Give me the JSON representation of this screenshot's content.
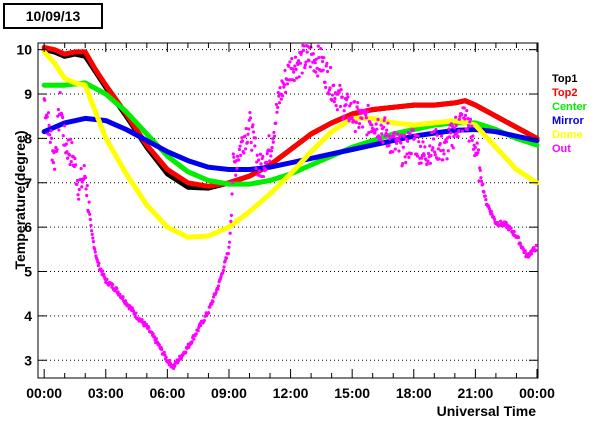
{
  "date_label": "10/09/13",
  "chart_data": {
    "type": "scatter",
    "title": "",
    "xlabel": "Universal Time",
    "ylabel": "Temperature(degree)",
    "x_range_hours": [
      0,
      24
    ],
    "xlim": [
      -0.3,
      24.05
    ],
    "ylim": [
      2.6,
      10.15
    ],
    "x_ticks": [
      {
        "h": 0,
        "label": "00:00"
      },
      {
        "h": 3,
        "label": "03:00"
      },
      {
        "h": 6,
        "label": "06:00"
      },
      {
        "h": 9,
        "label": "09:00"
      },
      {
        "h": 12,
        "label": "12:00"
      },
      {
        "h": 15,
        "label": "15:00"
      },
      {
        "h": 18,
        "label": "18:00"
      },
      {
        "h": 21,
        "label": "21:00"
      },
      {
        "h": 24,
        "label": "00:00"
      }
    ],
    "y_ticks": [
      3,
      4,
      5,
      6,
      7,
      8,
      9,
      10
    ],
    "grid": "horizontal dotted",
    "legend_position": "right",
    "series": [
      {
        "name": "Top1",
        "color": "#000000",
        "points": [
          [
            0,
            10.0
          ],
          [
            0.5,
            9.95
          ],
          [
            1,
            9.85
          ],
          [
            1.5,
            9.9
          ],
          [
            2,
            9.85
          ],
          [
            2.5,
            9.5
          ],
          [
            3,
            9.15
          ],
          [
            4,
            8.5
          ],
          [
            5,
            7.8
          ],
          [
            6,
            7.2
          ],
          [
            7,
            6.9
          ],
          [
            8,
            6.88
          ],
          [
            9,
            7.0
          ],
          [
            10,
            7.15
          ],
          [
            11,
            7.4
          ],
          [
            12,
            7.75
          ],
          [
            13,
            8.1
          ],
          [
            14,
            8.35
          ],
          [
            15,
            8.55
          ],
          [
            16,
            8.65
          ],
          [
            17,
            8.7
          ],
          [
            18,
            8.75
          ],
          [
            19,
            8.75
          ],
          [
            20,
            8.8
          ],
          [
            20.5,
            8.85
          ],
          [
            21,
            8.75
          ],
          [
            22,
            8.5
          ],
          [
            23,
            8.25
          ],
          [
            24,
            8.0
          ]
        ]
      },
      {
        "name": "Top2",
        "color": "#ff0000",
        "points": [
          [
            0,
            10.05
          ],
          [
            0.5,
            10.0
          ],
          [
            1,
            9.9
          ],
          [
            1.5,
            9.95
          ],
          [
            2,
            9.95
          ],
          [
            2.5,
            9.55
          ],
          [
            3,
            9.2
          ],
          [
            4,
            8.55
          ],
          [
            5,
            7.85
          ],
          [
            6,
            7.3
          ],
          [
            7,
            7.0
          ],
          [
            8,
            6.92
          ],
          [
            9,
            7.0
          ],
          [
            10,
            7.15
          ],
          [
            11,
            7.4
          ],
          [
            12,
            7.75
          ],
          [
            13,
            8.1
          ],
          [
            14,
            8.35
          ],
          [
            15,
            8.55
          ],
          [
            16,
            8.65
          ],
          [
            17,
            8.7
          ],
          [
            18,
            8.75
          ],
          [
            19,
            8.75
          ],
          [
            20,
            8.8
          ],
          [
            20.5,
            8.85
          ],
          [
            21,
            8.75
          ],
          [
            22,
            8.5
          ],
          [
            23,
            8.25
          ],
          [
            24,
            8.0
          ]
        ]
      },
      {
        "name": "Center",
        "color": "#00ee00",
        "points": [
          [
            0,
            9.2
          ],
          [
            1,
            9.2
          ],
          [
            2,
            9.25
          ],
          [
            3,
            9.0
          ],
          [
            4,
            8.6
          ],
          [
            5,
            8.1
          ],
          [
            6,
            7.6
          ],
          [
            7,
            7.25
          ],
          [
            8,
            7.05
          ],
          [
            9,
            6.97
          ],
          [
            10,
            6.97
          ],
          [
            11,
            7.05
          ],
          [
            12,
            7.2
          ],
          [
            13,
            7.4
          ],
          [
            14,
            7.6
          ],
          [
            15,
            7.8
          ],
          [
            16,
            7.95
          ],
          [
            17,
            8.1
          ],
          [
            18,
            8.2
          ],
          [
            19,
            8.3
          ],
          [
            20,
            8.35
          ],
          [
            21,
            8.35
          ],
          [
            22,
            8.2
          ],
          [
            23,
            8.0
          ],
          [
            24,
            7.85
          ]
        ]
      },
      {
        "name": "Mirror",
        "color": "#0000ee",
        "points": [
          [
            0,
            8.15
          ],
          [
            1,
            8.35
          ],
          [
            2,
            8.45
          ],
          [
            3,
            8.4
          ],
          [
            4,
            8.2
          ],
          [
            5,
            7.95
          ],
          [
            6,
            7.7
          ],
          [
            7,
            7.5
          ],
          [
            8,
            7.35
          ],
          [
            9,
            7.3
          ],
          [
            10,
            7.3
          ],
          [
            11,
            7.35
          ],
          [
            12,
            7.45
          ],
          [
            13,
            7.55
          ],
          [
            14,
            7.65
          ],
          [
            15,
            7.75
          ],
          [
            16,
            7.85
          ],
          [
            17,
            7.95
          ],
          [
            18,
            8.05
          ],
          [
            19,
            8.12
          ],
          [
            20,
            8.18
          ],
          [
            21,
            8.2
          ],
          [
            22,
            8.15
          ],
          [
            23,
            8.05
          ],
          [
            24,
            7.95
          ]
        ]
      },
      {
        "name": "Dome",
        "color": "#ffff00",
        "points": [
          [
            0,
            9.95
          ],
          [
            0.5,
            9.7
          ],
          [
            1,
            9.35
          ],
          [
            1.5,
            9.25
          ],
          [
            2,
            9.2
          ],
          [
            2.5,
            8.6
          ],
          [
            3,
            8.0
          ],
          [
            4,
            7.2
          ],
          [
            5,
            6.5
          ],
          [
            6,
            6.0
          ],
          [
            7,
            5.77
          ],
          [
            8,
            5.8
          ],
          [
            9,
            6.0
          ],
          [
            10,
            6.35
          ],
          [
            11,
            6.75
          ],
          [
            12,
            7.2
          ],
          [
            13,
            7.7
          ],
          [
            14,
            8.15
          ],
          [
            15,
            8.45
          ],
          [
            16,
            8.45
          ],
          [
            17,
            8.35
          ],
          [
            18,
            8.3
          ],
          [
            19,
            8.35
          ],
          [
            20,
            8.4
          ],
          [
            21,
            8.3
          ],
          [
            22,
            7.8
          ],
          [
            23,
            7.3
          ],
          [
            24,
            7.0
          ]
        ]
      },
      {
        "name": "Out",
        "color": "#ff00ff",
        "points": [
          [
            0,
            8.9
          ],
          [
            0.5,
            7.5
          ],
          [
            0.8,
            8.8
          ],
          [
            1,
            7.9
          ],
          [
            1.4,
            7.6
          ],
          [
            1.7,
            6.9
          ],
          [
            2,
            7.2
          ],
          [
            2.3,
            5.9
          ],
          [
            2.6,
            5.2
          ],
          [
            3,
            4.8
          ],
          [
            3.5,
            4.6
          ],
          [
            4,
            4.3
          ],
          [
            4.5,
            4.0
          ],
          [
            5,
            3.75
          ],
          [
            5.5,
            3.4
          ],
          [
            6,
            3.0
          ],
          [
            6.3,
            2.85
          ],
          [
            7,
            3.3
          ],
          [
            7.5,
            3.7
          ],
          [
            8,
            4.1
          ],
          [
            8.5,
            4.7
          ],
          [
            9,
            5.5
          ],
          [
            9.2,
            7.3
          ],
          [
            9.7,
            8.0
          ],
          [
            10,
            8.3
          ],
          [
            10.5,
            7.3
          ],
          [
            11,
            7.8
          ],
          [
            11.5,
            9.0
          ],
          [
            12,
            9.6
          ],
          [
            12.5,
            9.75
          ],
          [
            13,
            9.85
          ],
          [
            13.5,
            9.7
          ],
          [
            14,
            9.2
          ],
          [
            14.5,
            8.8
          ],
          [
            15,
            8.55
          ],
          [
            15.5,
            8.4
          ],
          [
            16,
            8.4
          ],
          [
            16.5,
            8.2
          ],
          [
            17,
            7.9
          ],
          [
            17.5,
            7.7
          ],
          [
            18,
            8.0
          ],
          [
            18.5,
            7.6
          ],
          [
            19,
            7.9
          ],
          [
            19.5,
            7.7
          ],
          [
            20,
            8.2
          ],
          [
            20.5,
            8.5
          ],
          [
            21,
            7.8
          ],
          [
            21.5,
            6.6
          ],
          [
            22,
            6.1
          ],
          [
            22.5,
            6.05
          ],
          [
            23,
            5.8
          ],
          [
            23.5,
            5.35
          ],
          [
            24,
            5.55
          ]
        ]
      }
    ]
  }
}
